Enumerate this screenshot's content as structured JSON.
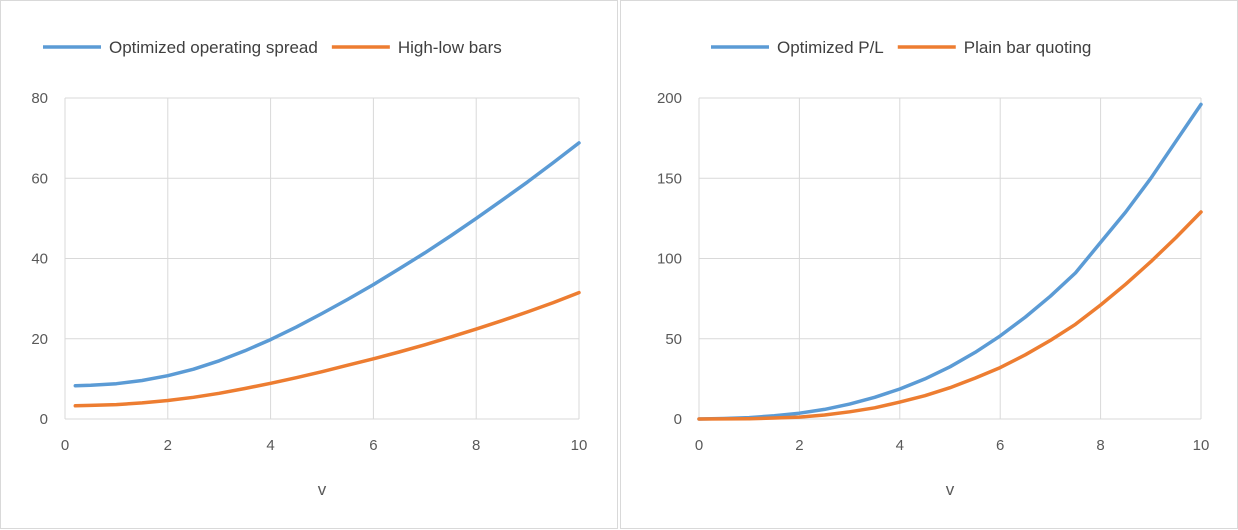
{
  "chart_data": [
    {
      "type": "line",
      "xlabel": "v",
      "ylabel": "",
      "xlim": [
        0,
        10
      ],
      "ylim": [
        0,
        80
      ],
      "xticks": [
        0,
        2,
        4,
        6,
        8,
        10
      ],
      "yticks": [
        0,
        20,
        40,
        60,
        80
      ],
      "grid": true,
      "legend_position": "top",
      "series": [
        {
          "name": "Optimized operating spread",
          "color": "#5b9bd5",
          "x": [
            0.2,
            0.5,
            1,
            1.5,
            2,
            2.5,
            3,
            3.5,
            4,
            4.5,
            5,
            5.5,
            6,
            6.5,
            7,
            7.5,
            8,
            8.5,
            9,
            9.5,
            10
          ],
          "y": [
            8.3,
            8.4,
            8.8,
            9.6,
            10.8,
            12.4,
            14.5,
            17.0,
            19.8,
            22.9,
            26.3,
            29.8,
            33.5,
            37.4,
            41.4,
            45.6,
            50.0,
            54.5,
            59.1,
            63.9,
            68.8
          ]
        },
        {
          "name": "High-low bars",
          "color": "#ed7d31",
          "x": [
            0.2,
            0.5,
            1,
            1.5,
            2,
            2.5,
            3,
            3.5,
            4,
            4.5,
            5,
            5.5,
            6,
            6.5,
            7,
            7.5,
            8,
            8.5,
            9,
            9.5,
            10
          ],
          "y": [
            3.3,
            3.4,
            3.6,
            4.0,
            4.6,
            5.4,
            6.4,
            7.6,
            8.9,
            10.3,
            11.8,
            13.4,
            15.0,
            16.7,
            18.5,
            20.4,
            22.4,
            24.5,
            26.7,
            29.0,
            31.5
          ]
        }
      ]
    },
    {
      "type": "line",
      "xlabel": "v",
      "ylabel": "",
      "xlim": [
        0,
        10
      ],
      "ylim": [
        0,
        200
      ],
      "xticks": [
        0,
        2,
        4,
        6,
        8,
        10
      ],
      "yticks": [
        0,
        50,
        100,
        150,
        200
      ],
      "grid": true,
      "legend_position": "top",
      "series": [
        {
          "name": "Optimized P/L",
          "color": "#5b9bd5",
          "x": [
            0,
            0.5,
            1,
            1.5,
            2,
            2.5,
            3,
            3.5,
            4,
            4.5,
            5,
            5.5,
            6,
            6.5,
            7,
            7.5,
            8,
            8.5,
            9,
            9.5,
            10
          ],
          "y": [
            0,
            0.3,
            0.9,
            2.0,
            3.6,
            6.0,
            9.3,
            13.5,
            18.7,
            25.0,
            32.5,
            41.5,
            51.8,
            63.5,
            76.5,
            91.0,
            110.0,
            129.0,
            150.0,
            173.0,
            196.0
          ]
        },
        {
          "name": "Plain bar quoting",
          "color": "#ed7d31",
          "x": [
            0,
            0.5,
            1,
            1.5,
            2,
            2.5,
            3,
            3.5,
            4,
            4.5,
            5,
            5.5,
            6,
            6.5,
            7,
            7.5,
            8,
            8.5,
            9,
            9.5,
            10
          ],
          "y": [
            0,
            0.05,
            0.2,
            0.6,
            1.2,
            2.5,
            4.5,
            7.0,
            10.5,
            14.5,
            19.5,
            25.5,
            32.0,
            40.0,
            49.0,
            59.0,
            71.0,
            84.0,
            98.0,
            113.0,
            129.0
          ]
        }
      ]
    }
  ]
}
